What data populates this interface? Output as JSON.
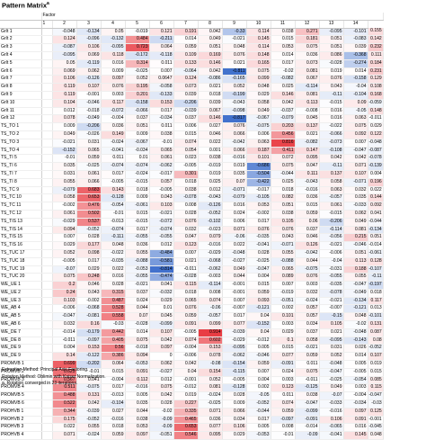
{
  "title": "Pattern Matrix",
  "title_sup": "a",
  "header": {
    "factor_label": "Factor"
  },
  "columns": [
    "1",
    "2",
    "3",
    "4",
    "5",
    "6",
    "7",
    "8",
    "9",
    "10",
    "11",
    "12",
    "13",
    "14"
  ],
  "rows": [
    {
      "label": "GrIt 1",
      "values": [
        "",
        "-0.048",
        "-0.134",
        "0.05",
        "-0.019",
        "0.121",
        "0.191",
        "0.042",
        "-0.33",
        "0.114",
        "0.038",
        "0.271",
        "-0.095",
        "-0.101",
        "0.155"
      ]
    },
    {
      "label": "GrIt 2",
      "values": [
        "",
        "0.124",
        "-0.096",
        "-0.132",
        "0.484",
        "-0.211",
        "0.014",
        "0.049",
        "-0.021",
        "0.145",
        "0.015",
        "0.181",
        "0.051",
        "-0.083",
        "0.142"
      ]
    },
    {
      "label": "GrIt 3",
      "values": [
        "",
        "-0.087",
        "0.106",
        "-0.095",
        "0.723",
        "0.064",
        "0.059",
        "0.051",
        "0.048",
        "0.114",
        "0.053",
        "0.075",
        "0.051",
        "0.039",
        "0.232"
      ]
    },
    {
      "label": "GrIt 4",
      "values": [
        "",
        "-0.095",
        "0.069",
        "0.118",
        "-0.172",
        "-0.118",
        "0.109",
        "0.169",
        "0.076",
        "0.148",
        "0.014",
        "0.036",
        "0.086",
        "-0.368",
        "0.111"
      ]
    },
    {
      "label": "GrIt 5",
      "values": [
        "",
        "0.05",
        "-0.119",
        "0.016",
        "0.314",
        "0.011",
        "0.133",
        "0.146",
        "0.021",
        "0.165",
        "0.017",
        "0.073",
        "-0.028",
        "-0.274",
        "0.184"
      ]
    },
    {
      "label": "GrIt 6",
      "values": [
        "",
        "0.069",
        "0.062",
        "0.009",
        "-0.025",
        "0.007",
        "-0.064",
        "0.042",
        "-0.811",
        "0.075",
        "-0.02",
        "0.081",
        "0.019",
        "0.014",
        "0.231"
      ]
    },
    {
      "label": "GrIt 7",
      "values": [
        "",
        "0.106",
        "-0.126",
        "0.097",
        "0.052",
        "0.0647",
        "0.124",
        "-0.086",
        "-0.165",
        "0.099",
        "-0.082",
        "0.067",
        "0.076",
        "-0.158",
        "0.129"
      ]
    },
    {
      "label": "GrIt 8",
      "values": [
        "",
        "0.119",
        "0.107",
        "0.076",
        "0.195",
        "-0.058",
        "0.073",
        "0.021",
        "0.052",
        "0.048",
        "0.025",
        "-0.114",
        "0.043",
        "-0.04",
        "0.108"
      ]
    },
    {
      "label": "GrIt 9",
      "values": [
        "",
        "0.119",
        "-0.001",
        "0.003",
        "0.201",
        "-0.133",
        "0.039",
        "0.018",
        "-0.199",
        "0.029",
        "0.146",
        "0.081",
        "-0.11",
        "-0.104",
        "0.168"
      ]
    },
    {
      "label": "GrIt 10",
      "values": [
        "",
        "0.104",
        "-0.046",
        "0.117",
        "-0.158",
        "0.153",
        "-0.206",
        "0.039",
        "-0.043",
        "0.058",
        "0.042",
        "0.113",
        "-0.015",
        "0.09",
        "-0.059"
      ]
    },
    {
      "label": "GrIt 11",
      "values": [
        "",
        "0.012",
        "-0.018",
        "-0.072",
        "-0.066",
        "0.017",
        "-0.039",
        "0.067",
        "-0.098",
        "0.049",
        "-0.037",
        "-0.008",
        "0.016",
        "-0.05",
        "0.148"
      ]
    },
    {
      "label": "GrIt 12",
      "values": [
        "",
        "0.078",
        "-0.049",
        "-0.004",
        "0.037",
        "-0.034",
        "0.037",
        "0.146",
        "-0.817",
        "-0.067",
        "-0.079",
        "0.045",
        "0.016",
        "0.063",
        "-0.011"
      ]
    },
    {
      "label": "TS_TO 1",
      "values": [
        "",
        "0.009",
        "-0.206",
        "0.036",
        "0.051",
        "0.011",
        "0.006",
        "0.027",
        "0.076",
        "-0.075",
        "0.203",
        "0.137",
        "-0.022",
        "0.075",
        "0.029"
      ]
    },
    {
      "label": "TS_TO 2",
      "values": [
        "",
        "0.049",
        "-0.026",
        "0.149",
        "0.009",
        "0.038",
        "0.015",
        "0.046",
        "0.066",
        "0.006",
        "0.456",
        "0.021",
        "-0.066",
        "0.092",
        "0.122"
      ]
    },
    {
      "label": "TS_TO 3",
      "values": [
        "",
        "-0.021",
        "0.031",
        "-0.024",
        "-0.067",
        "-0.01",
        "0.074",
        "0.022",
        "-0.042",
        "0.063",
        "0.816",
        "-0.082",
        "-0.073",
        "0.007",
        "-0.048"
      ]
    },
    {
      "label": "TS_TO 4",
      "values": [
        "",
        "-0.152",
        "0.065",
        "-0.041",
        "-0.034",
        "0.065",
        "0.054",
        "0.001",
        "0.066",
        "0.187",
        "0.411",
        "0.147",
        "-0.108",
        "-0.047",
        "-0.087"
      ]
    },
    {
      "label": "TS_TI 5",
      "values": [
        "",
        "-0.01",
        "0.059",
        "0.011",
        "0.01",
        "0.061",
        "0.023",
        "0.038",
        "-0.016",
        "0.101",
        "0.072",
        "0.095",
        "0.042",
        "0.042",
        "-0.078"
      ]
    },
    {
      "label": "TS_TI 6",
      "values": [
        "",
        "0.035",
        "-0.025",
        "-0.074",
        "-0.074",
        "-0.062",
        "-0.005",
        "-0.019",
        "0.019",
        "-0.686",
        "0.075",
        "0.047",
        "-0.11",
        "0.071",
        "-0.139"
      ]
    },
    {
      "label": "TS_TI 7",
      "values": [
        "",
        "0.031",
        "0.061",
        "0.017",
        "-0.024",
        "-0.017",
        "0.301",
        "0.019",
        "0.035",
        "-0.504",
        "-0.044",
        "0.111",
        "0.137",
        "0.107",
        "0.004"
      ]
    },
    {
      "label": "TS_TI 8",
      "values": [
        "",
        "0.055",
        "0.066",
        "-0.005",
        "-0.015",
        "0.057",
        "0.018",
        "0.025",
        "0.07",
        "-0.422",
        "0.025",
        "-0.043",
        "0.058",
        "-0.071",
        "0.196"
      ]
    },
    {
      "label": "TS_TC 9",
      "values": [
        "",
        "-0.079",
        "0.683",
        "0.143",
        "0.018",
        "-0.005",
        "0.038",
        "0.012",
        "-0.071",
        "-0.017",
        "0.018",
        "-0.016",
        "0.063",
        "0.032",
        "0.022"
      ]
    },
    {
      "label": "TS_TC 10",
      "values": [
        "",
        "0.058",
        "0.653",
        "-0.128",
        "0.009",
        "0.043",
        "-0.078",
        "-0.043",
        "-0.079",
        "-0.105",
        "0.082",
        "0.036",
        "-0.057",
        "0.035",
        "0.144"
      ]
    },
    {
      "label": "TS_TC 11",
      "values": [
        "",
        "-0.002",
        "0.476",
        "-0.054",
        "-0.061",
        "0.103",
        "0.008",
        "-0.126",
        "0.016",
        "0.053",
        "0.051",
        "0.015",
        "0.061",
        "-0.033",
        "0.092"
      ]
    },
    {
      "label": "TS_TC 12",
      "values": [
        "",
        "0.061",
        "0.502",
        "-0.01",
        "0.015",
        "-0.021",
        "0.028",
        "-0.052",
        "0.024",
        "-0.002",
        "0.038",
        "0.059",
        "-0.015",
        "0.062",
        "0.041"
      ]
    },
    {
      "label": "TS_TIS 13",
      "values": [
        "",
        "-0.029",
        "0.537",
        "-0.013",
        "-0.015",
        "-0.072",
        "0.076",
        "-0.102",
        "0.006",
        "0.017",
        "0.105",
        "0.06",
        "-0.206",
        "0.049",
        "-0.044"
      ]
    },
    {
      "label": "TS_TIS 14",
      "values": [
        "",
        "0.094",
        "-0.052",
        "-0.074",
        "0.017",
        "-0.074",
        "0.032",
        "-0.023",
        "0.071",
        "0.076",
        "0.076",
        "0.037",
        "-0.114",
        "0.081",
        "-0.134"
      ]
    },
    {
      "label": "TS_TIS 15",
      "values": [
        "",
        "0.007",
        "0.028",
        "-0.111",
        "-0.055",
        "-0.055",
        "0.047",
        "0.079",
        "-0.06",
        "-0.035",
        "0.043",
        "0.046",
        "-0.056",
        "0.215",
        "0.051"
      ]
    },
    {
      "label": "TS_TIS 16",
      "values": [
        "",
        "0.029",
        "0.177",
        "0.048",
        "0.036",
        "0.012",
        "0.123",
        "-0.016",
        "0.022",
        "-0.041",
        "-0.071",
        "0.126",
        "-0.021",
        "-0.046",
        "-0.014"
      ]
    },
    {
      "label": "TS_TUC 17",
      "values": [
        "",
        "0.052",
        "0.098",
        "-0.022",
        "0.055",
        "-0.484",
        "0.007",
        "-0.029",
        "-0.048",
        "0.028",
        "0.055",
        "-0.042",
        "-0.006",
        "0.051",
        "-0.061"
      ]
    },
    {
      "label": "TS_TUC 18",
      "values": [
        "",
        "-0.005",
        "0.017",
        "-0.035",
        "-0.088",
        "-0.581",
        "0.021",
        "-0.068",
        "-0.027",
        "-0.025",
        "-0.088",
        "0.044",
        "-0.04",
        "0.113",
        "0.128"
      ]
    },
    {
      "label": "TS_TUC 19",
      "values": [
        "",
        "-0.07",
        "0.029",
        "0.022",
        "-0.053",
        "-0.814",
        "-0.011",
        "-0.062",
        "0.049",
        "-0.047",
        "0.065",
        "-0.075",
        "-0.031",
        "0.188",
        "-0.107"
      ]
    },
    {
      "label": "TS_TUC 20",
      "values": [
        "",
        "0.075",
        "0.248",
        "0.016",
        "-0.055",
        "-0.474",
        "-0.028",
        "-0.003",
        "0.044",
        "0.004",
        "0.089",
        "0.076",
        "-0.055",
        "0.055",
        "-0.11"
      ]
    },
    {
      "label": "WE_UE 1",
      "values": [
        "",
        "0.2",
        "0.046",
        "0.028",
        "-0.021",
        "0.041",
        "0.115",
        "-0.114",
        "-0.001",
        "0.015",
        "0.007",
        "0.003",
        "-0.035",
        "-0.047",
        "-0.197"
      ]
    },
    {
      "label": "WE_UE 2",
      "values": [
        "",
        "0.24",
        "0.043",
        "0.315",
        "0.037",
        "-0.032",
        "0.018",
        "0.008",
        "-0.001",
        "0.059",
        "-0.019",
        "0.032",
        "-0.078",
        "-0.049",
        "0.018"
      ]
    },
    {
      "label": "WE_UE 3",
      "values": [
        "",
        "0.103",
        "-0.002",
        "0.487",
        "0.024",
        "0.029",
        "0.065",
        "0.074",
        "0.007",
        "0.093",
        "-0.051",
        "-0.024",
        "-0.021",
        "-0.134",
        "0.117"
      ]
    },
    {
      "label": "WE_AB 4",
      "values": [
        "",
        "-0.006",
        "-0.068",
        "0.528",
        "0.044",
        "0.01",
        "0.076",
        "-0.06",
        "-0.007",
        "-0.121",
        "0.002",
        "0.057",
        "-0.007",
        "-0.121",
        "0.013"
      ]
    },
    {
      "label": "WE_AB 5",
      "values": [
        "",
        "-0.047",
        "-0.081",
        "0.558",
        "0.07",
        "0.045",
        "0.059",
        "-0.057",
        "0.017",
        "0.04",
        "0.101",
        "0.057",
        "-0.15",
        "0.048",
        "-0.101"
      ]
    },
    {
      "label": "WE_AB 6",
      "values": [
        "",
        "0.032",
        "0.16",
        "-0.03",
        "-0.028",
        "-0.099",
        "0.091",
        "0.099",
        "0.077",
        "-0.152",
        "0.003",
        "0.034",
        "0.105",
        "-0.02",
        "0.131"
      ]
    },
    {
      "label": "WE_DE 7",
      "values": [
        "",
        "-0.014",
        "-0.179",
        "0.442",
        "0.014",
        "0.107",
        "-0.005",
        "0.914",
        "-0.039",
        "0.04",
        "0.029",
        "0.037",
        "0.021",
        "-0.048",
        "0.087"
      ]
    },
    {
      "label": "WE_DE 8",
      "values": [
        "",
        "-0.011",
        "-0.097",
        "0.405",
        "0.075",
        "0.042",
        "0.074",
        "0.602",
        "-0.029",
        "-0.012",
        "0.1",
        "0.058",
        "-0.095",
        "-0.143",
        "0.08"
      ]
    },
    {
      "label": "WE_DE 9",
      "values": [
        "",
        "0.004",
        "0.153",
        "0.56",
        "-0.018",
        "0.097",
        "-0.004",
        "0.153",
        "-0.095",
        "0.005",
        "0.015",
        "-0.021",
        "0.031",
        "0.026",
        "-0.052"
      ]
    },
    {
      "label": "WE_DE 9",
      "values": [
        "",
        "0.14",
        "-0.122",
        "0.386",
        "0.094",
        "0",
        "-0.006",
        "0.078",
        "-0.062",
        "-0.046",
        "0.077",
        "0.059",
        "0.052",
        "0.014",
        "0.107"
      ]
    },
    {
      "label": "PROMVB 1",
      "values": [
        "",
        "0.699",
        "-0.202",
        "0.064",
        "-0.053",
        "0.062",
        "0.042",
        "-0.08",
        "-0.154",
        "0.059",
        "-0.091",
        "0.011",
        "-0.048",
        "0.005",
        "0.019"
      ]
    },
    {
      "label": "PROMVB 2",
      "values": [
        "",
        "0.625",
        "-0.01",
        "0.015",
        "0.091",
        "-0.027",
        "0.04",
        "0.154",
        "-0.115",
        "0.007",
        "0.024",
        "0.075",
        "-0.047",
        "-0.005",
        "0.015"
      ]
    },
    {
      "label": "PROMVB 3",
      "values": [
        "",
        "0.567",
        "0.041",
        "-0.004",
        "0.112",
        "0.012",
        "-0.001",
        "0.052",
        "-0.005",
        "0.004",
        "0.003",
        "-0.011",
        "-0.025",
        "-0.054",
        "0.085"
      ]
    },
    {
      "label": "PROMVB 4",
      "values": [
        "",
        "0.511",
        "-0.075",
        "0.017",
        "-0.016",
        "0.075",
        "-0.012",
        "0.081",
        "-0.128",
        "0.002",
        "0.123",
        "-0.125",
        "0.049",
        "0.003",
        "0.115"
      ]
    },
    {
      "label": "PROMVB 5",
      "values": [
        "",
        "0.488",
        "0.131",
        "-0.013",
        "0.005",
        "0.042",
        "0.019",
        "-0.024",
        "0.028",
        "-0.05",
        "0.011",
        "0.038",
        "-0.07",
        "-0.004",
        "-0.047"
      ]
    },
    {
      "label": "PROMVB 6",
      "values": [
        "",
        "0.522",
        "0.042",
        "-0.104",
        "0.035",
        "0.028",
        "0.227",
        "-0.025",
        "0.009",
        "-0.052",
        "0.074",
        "-0.047",
        "-0.033",
        "-0.034",
        "-0.03"
      ]
    },
    {
      "label": "PROHVB 1",
      "values": [
        "",
        "0.344",
        "-0.039",
        "0.027",
        "0.044",
        "-0.02",
        "0.335",
        "0.071",
        "0.066",
        "-0.044",
        "0.059",
        "-0.099",
        "-0.016",
        "0.097",
        "0.125"
      ]
    },
    {
      "label": "PROHVB 2",
      "values": [
        "",
        "0.175",
        "-0.052",
        "-0.016",
        "0.038",
        "-0.09",
        "0.465",
        "0.036",
        "0.034",
        "0.017",
        "-0.097",
        "-0.091",
        "0.106",
        "0.091",
        "-0.001"
      ]
    },
    {
      "label": "PROHVB 3",
      "values": [
        "",
        "0.022",
        "0.055",
        "0.018",
        "0.053",
        "-0.09",
        "0.653",
        "0.077",
        "0.106",
        "0.005",
        "0.008",
        "-0.014",
        "-0.065",
        "0.016",
        "-0.045"
      ]
    },
    {
      "label": "PROHVB 4",
      "values": [
        "",
        "0.071",
        "-0.024",
        "0.059",
        "0.097",
        "-0.051",
        "0.546",
        "0.095",
        "0.029",
        "-0.053",
        "-0.01",
        "-0.09",
        "-0.041",
        "0.145",
        "0.048"
      ]
    }
  ],
  "footer": {
    "line1": "Extraction Method: Principal Axis Factoring.",
    "line2": "Rotation Method: Oblimin with Kaiser Normalization.",
    "line3": "a. Rotation converged in 23 iterations."
  },
  "colors": {
    "positive": "#e8333a",
    "negative": "#2f63c8"
  }
}
